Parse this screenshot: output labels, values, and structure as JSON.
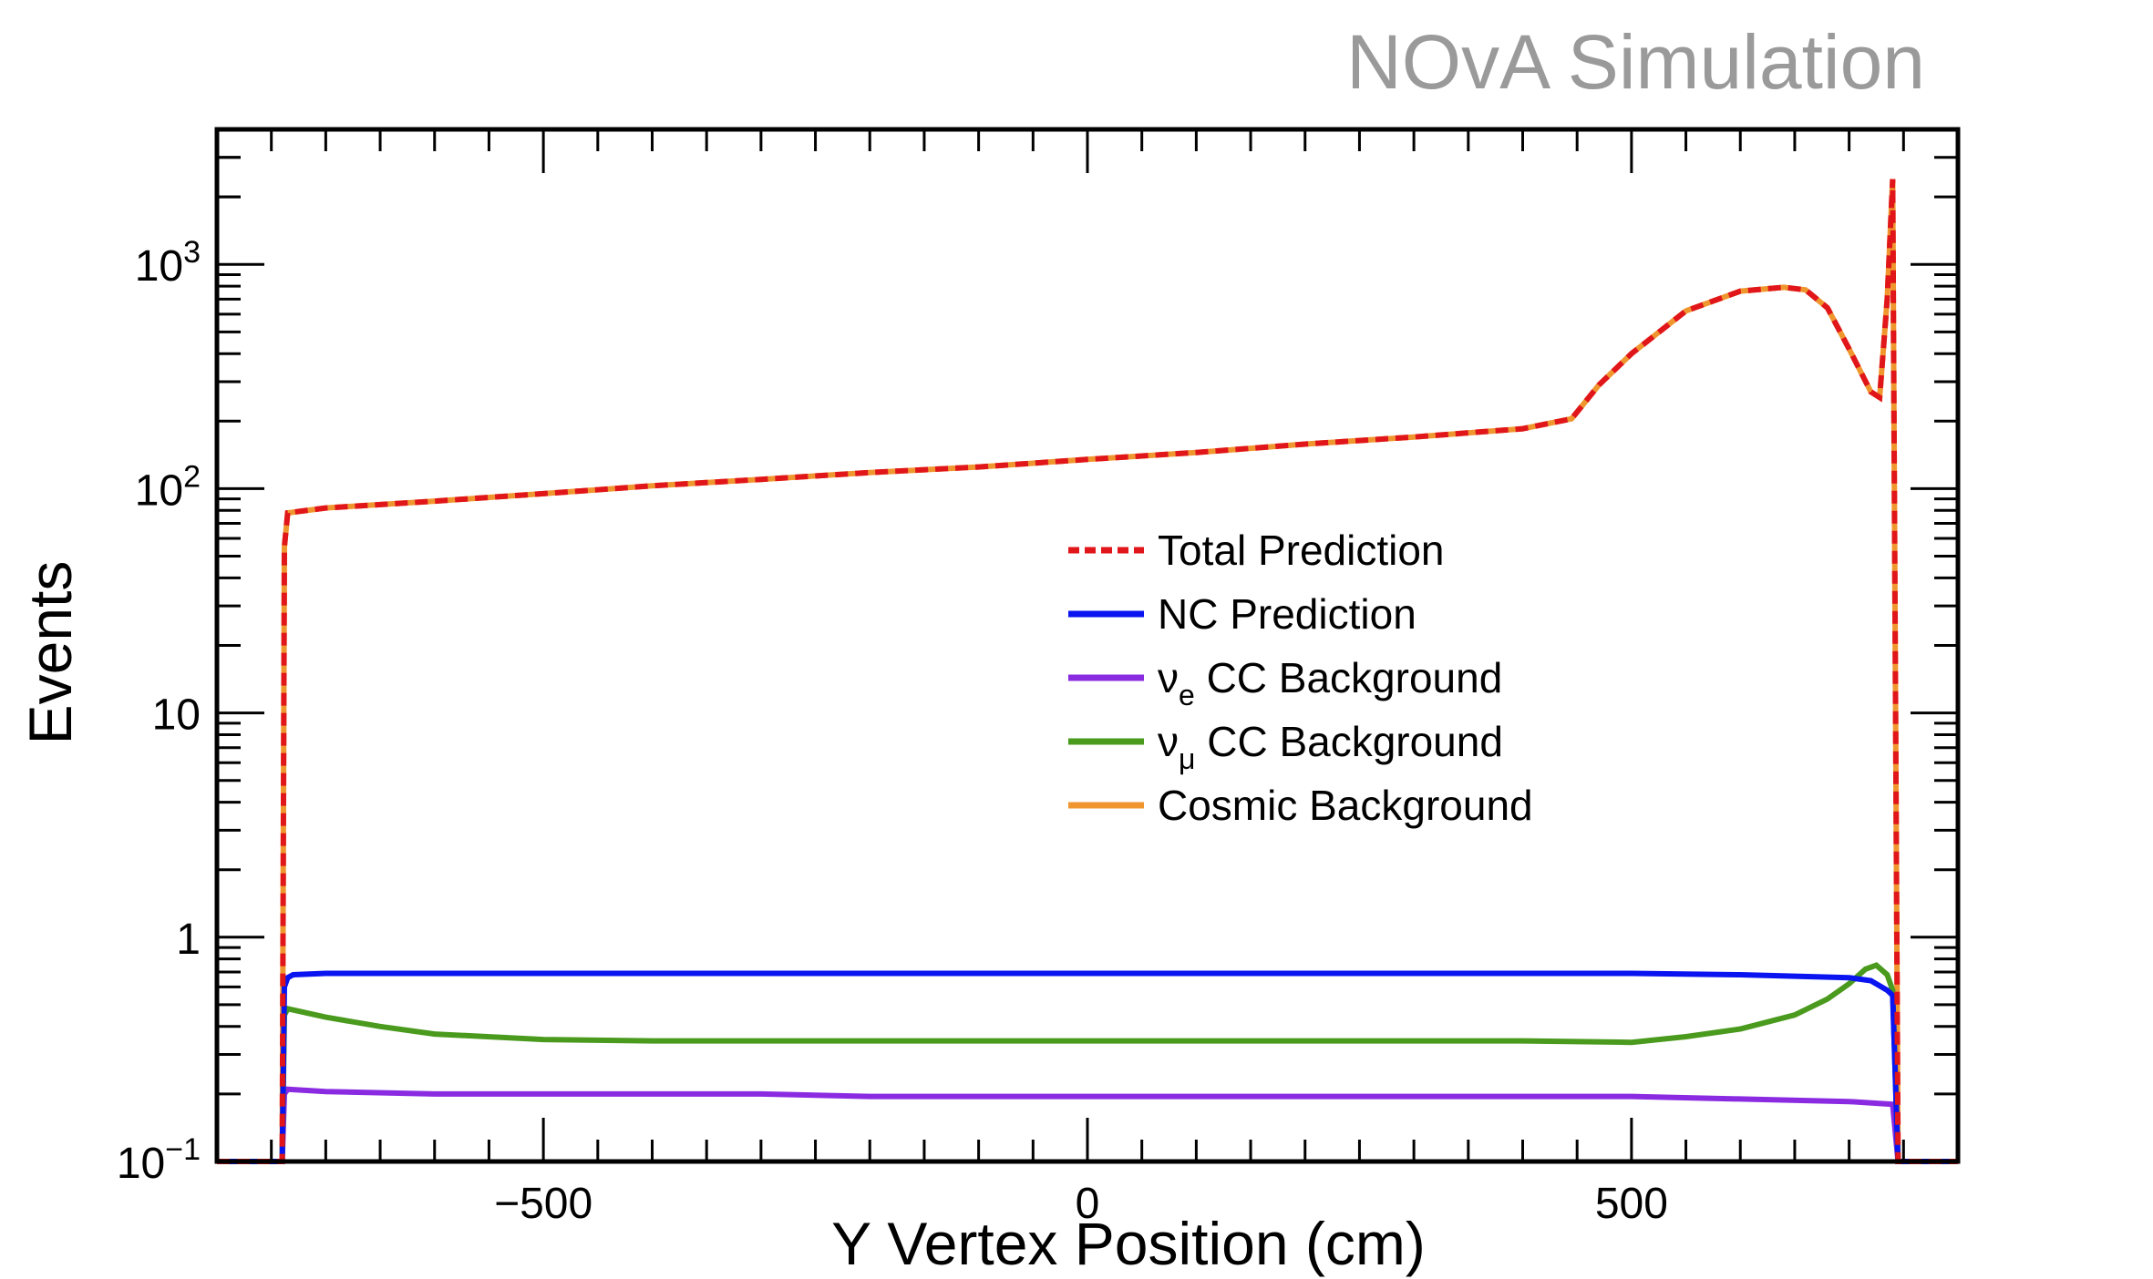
{
  "annotation": "NOvA Simulation",
  "colors": {
    "total": "#e0161a",
    "nc": "#0a14f0",
    "nue": "#8a2be2",
    "numu": "#4a9a1e",
    "cosmic": "#f0962e",
    "annotation": "#9a9a9a",
    "axis": "#000000"
  },
  "chart_data": {
    "type": "line",
    "xlabel": "Y Vertex Position (cm)",
    "ylabel": "Events",
    "xlim": [
      -800,
      800
    ],
    "ylim": [
      0.1,
      4000
    ],
    "yscale": "log",
    "grid": false,
    "legend_position": "center-right",
    "x_ticks": [
      -500,
      0,
      500
    ],
    "x_tick_labels": [
      "−500",
      "0",
      "500"
    ],
    "y_ticks": [
      0.1,
      1,
      10,
      100,
      1000
    ],
    "y_tick_labels": [
      {
        "base": "10",
        "sup": "−1"
      },
      {
        "base": "1",
        "sup": ""
      },
      {
        "base": "10",
        "sup": ""
      },
      {
        "base": "10",
        "sup": "2"
      },
      {
        "base": "10",
        "sup": "3"
      }
    ],
    "series": [
      {
        "name": "Total Prediction",
        "key": "total",
        "style": "dashed",
        "x": [
          -800,
          -740,
          -738,
          -735,
          -700,
          -600,
          -500,
          -400,
          -300,
          -200,
          -100,
          0,
          100,
          200,
          300,
          400,
          445,
          470,
          500,
          550,
          600,
          640,
          660,
          680,
          700,
          720,
          728,
          735,
          740,
          745,
          800
        ],
        "y": [
          0.1,
          0.1,
          55,
          78,
          82,
          88,
          95,
          103,
          110,
          118,
          125,
          135,
          145,
          158,
          170,
          185,
          205,
          290,
          400,
          620,
          760,
          790,
          770,
          640,
          420,
          270,
          255,
          700,
          2400,
          0.1,
          0.1
        ]
      },
      {
        "name": "NC Prediction",
        "key": "nc",
        "style": "solid",
        "x": [
          -800,
          -740,
          -738,
          -735,
          -730,
          -700,
          -600,
          -500,
          -400,
          -300,
          -200,
          -100,
          0,
          100,
          200,
          300,
          400,
          500,
          600,
          700,
          720,
          735,
          740,
          745,
          800
        ],
        "y": [
          0.1,
          0.1,
          0.6,
          0.66,
          0.68,
          0.69,
          0.69,
          0.69,
          0.69,
          0.69,
          0.69,
          0.69,
          0.69,
          0.69,
          0.69,
          0.69,
          0.69,
          0.69,
          0.68,
          0.66,
          0.64,
          0.58,
          0.55,
          0.1,
          0.1
        ]
      },
      {
        "name": "νe CC Background",
        "key": "nue",
        "style": "solid",
        "x": [
          -800,
          -740,
          -738,
          -735,
          -700,
          -600,
          -500,
          -400,
          -300,
          -200,
          -100,
          0,
          100,
          200,
          300,
          400,
          500,
          600,
          700,
          740,
          745,
          800
        ],
        "y": [
          0.1,
          0.1,
          0.2,
          0.21,
          0.205,
          0.2,
          0.2,
          0.2,
          0.2,
          0.195,
          0.195,
          0.195,
          0.195,
          0.195,
          0.195,
          0.195,
          0.195,
          0.19,
          0.185,
          0.18,
          0.1,
          0.1
        ]
      },
      {
        "name": "νμ CC Background",
        "key": "numu",
        "style": "solid",
        "x": [
          -800,
          -740,
          -738,
          -735,
          -700,
          -650,
          -600,
          -500,
          -400,
          -300,
          -200,
          -100,
          0,
          100,
          200,
          300,
          400,
          500,
          550,
          600,
          650,
          680,
          700,
          715,
          725,
          735,
          740,
          745,
          800
        ],
        "y": [
          0.1,
          0.1,
          0.45,
          0.48,
          0.44,
          0.4,
          0.37,
          0.35,
          0.345,
          0.345,
          0.345,
          0.345,
          0.345,
          0.345,
          0.345,
          0.345,
          0.345,
          0.34,
          0.36,
          0.39,
          0.45,
          0.53,
          0.62,
          0.72,
          0.75,
          0.68,
          0.58,
          0.1,
          0.1
        ]
      },
      {
        "name": "Cosmic Background",
        "key": "cosmic",
        "style": "solid",
        "x": [
          -800,
          -740,
          -738,
          -735,
          -700,
          -600,
          -500,
          -400,
          -300,
          -200,
          -100,
          0,
          100,
          200,
          300,
          400,
          445,
          470,
          500,
          550,
          600,
          640,
          660,
          680,
          700,
          720,
          728,
          735,
          740,
          745,
          800
        ],
        "y": [
          0.1,
          0.1,
          55,
          78,
          82,
          88,
          95,
          103,
          110,
          118,
          125,
          135,
          145,
          158,
          170,
          185,
          205,
          290,
          400,
          620,
          760,
          790,
          770,
          640,
          420,
          270,
          255,
          700,
          2400,
          0.1,
          0.1
        ]
      }
    ],
    "legend": [
      {
        "key": "total",
        "label": "Total Prediction",
        "symbol": "",
        "sub": ""
      },
      {
        "key": "nc",
        "label": "NC Prediction",
        "symbol": "",
        "sub": ""
      },
      {
        "key": "nue",
        "label": "CC Background",
        "symbol": "ν",
        "sub": "e"
      },
      {
        "key": "numu",
        "label": "CC Background",
        "symbol": "ν",
        "sub": "μ"
      },
      {
        "key": "cosmic",
        "label": "Cosmic Background",
        "symbol": "",
        "sub": ""
      }
    ]
  }
}
